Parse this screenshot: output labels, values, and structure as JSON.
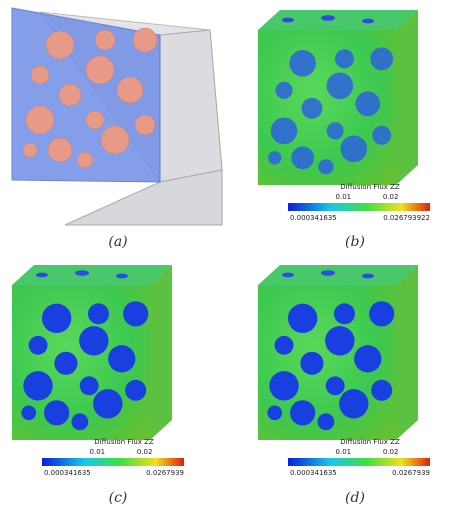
{
  "panels": [
    {
      "label": "(a)"
    },
    {
      "label": "(b)",
      "colorbar": {
        "title": "Diffusion Flux ZZ",
        "ticks": [
          "0.01",
          "0.02"
        ],
        "min": "0.000341635",
        "max": "0.026793922"
      }
    },
    {
      "label": "(c)",
      "colorbar": {
        "title": "Diffusion Flux ZZ",
        "ticks": [
          "0.01",
          "0.02"
        ],
        "min": "0.000341635",
        "max": "0.0267939"
      }
    },
    {
      "label": "(d)",
      "colorbar": {
        "title": "Diffusion Flux ZZ",
        "ticks": [
          "0.01",
          "0.02"
        ],
        "min": "0.000341635",
        "max": "0.0267939"
      }
    }
  ]
}
